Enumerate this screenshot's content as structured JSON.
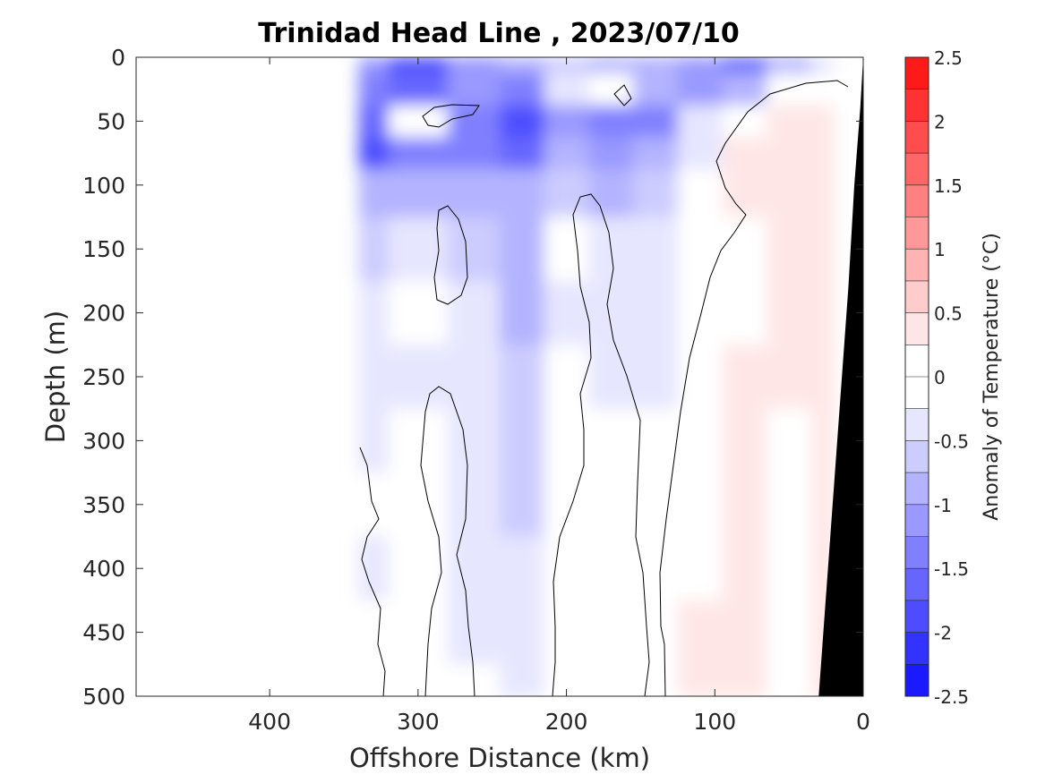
{
  "chart_data": {
    "type": "heatmap",
    "title": "Trinidad Head Line , 2023/07/10",
    "xlabel": "Offshore Distance (km)",
    "ylabel": "Depth (m)",
    "xlim": [
      490,
      0
    ],
    "ylim": [
      0,
      500
    ],
    "x_ticks": [
      400,
      300,
      200,
      100,
      0
    ],
    "y_ticks": [
      0,
      50,
      100,
      150,
      200,
      250,
      300,
      350,
      400,
      450,
      500
    ],
    "colorbar": {
      "label": "Anomaly of Temperature (°C)",
      "range": [
        -2.5,
        2.5
      ],
      "step": 0.25,
      "ticks": [
        -2.5,
        -2,
        -1.5,
        -1,
        -0.5,
        0,
        0.5,
        1,
        1.5,
        2,
        2.5
      ],
      "tick_labels": [
        "-2.5",
        "-2",
        "-1.5",
        "-1",
        "-0.5",
        "0",
        "0.5",
        "1",
        "1.5",
        "2",
        "2.5"
      ],
      "colors": [
        "#0000ff",
        "#1a1aff",
        "#3333ff",
        "#4d4dff",
        "#6666ff",
        "#8080ff",
        "#9999ff",
        "#b3b3ff",
        "#ccccff",
        "#e6e6ff",
        "#ffffff",
        "#ffffff",
        "#ffe6e6",
        "#ffcccc",
        "#ffb3b3",
        "#ff9999",
        "#ff8080",
        "#ff6666",
        "#ff4d4d",
        "#ff3333",
        "#ff1a1a",
        "#ff0000"
      ]
    },
    "bathymetry_color": "#000000",
    "data_extent_km": [
      340,
      0
    ],
    "anomaly_field": {
      "x": [
        340,
        300,
        260,
        230,
        200,
        170,
        140,
        110,
        80,
        50,
        20
      ],
      "depth": [
        0,
        25,
        50,
        75,
        100,
        150,
        200,
        250,
        300,
        350,
        400,
        450,
        500
      ],
      "values": [
        [
          -1.1,
          -2.0,
          -1.1,
          -0.9,
          -0.6,
          -0.9,
          -0.9,
          -1.2,
          -1.6,
          -0.8,
          -0.3
        ],
        [
          -1.3,
          -1.6,
          -1.2,
          -1.5,
          -0.4,
          0.0,
          -0.9,
          -1.1,
          -0.9,
          0.0,
          0.0
        ],
        [
          -1.6,
          -0.2,
          -1.4,
          -1.8,
          -1.1,
          -1.3,
          -1.4,
          -0.5,
          0.0,
          0.35,
          0.25
        ],
        [
          -1.8,
          -1.4,
          -1.5,
          -1.6,
          -1.0,
          -1.2,
          -1.0,
          -0.3,
          0.3,
          0.45,
          0.3
        ],
        [
          -1.0,
          -0.8,
          -0.8,
          -0.9,
          -0.6,
          -0.9,
          -0.7,
          -0.2,
          0.25,
          0.35,
          0.3
        ],
        [
          -0.6,
          -0.3,
          -0.6,
          -0.8,
          -0.1,
          -0.5,
          -0.5,
          -0.1,
          0.15,
          0.3,
          0.35
        ],
        [
          -0.5,
          0.0,
          -0.5,
          -0.8,
          -0.3,
          -0.4,
          -0.4,
          0.0,
          0.15,
          0.35,
          0.4
        ],
        [
          -0.5,
          -0.3,
          -0.4,
          -0.7,
          -0.1,
          -0.3,
          -0.3,
          0.0,
          0.3,
          0.3,
          0.4
        ],
        [
          -0.3,
          0.0,
          -0.4,
          -0.6,
          -0.1,
          -0.1,
          -0.2,
          0.0,
          0.3,
          0.15,
          0.4
        ],
        [
          -0.2,
          0.0,
          -0.3,
          -0.6,
          0.0,
          -0.1,
          -0.2,
          0.1,
          0.3,
          0.1,
          0.35
        ],
        [
          -0.3,
          0.0,
          -0.3,
          -0.5,
          0.0,
          -0.1,
          -0.2,
          0.2,
          0.3,
          0.1,
          0.35
        ],
        [
          -0.1,
          0.0,
          -0.3,
          -0.4,
          0.0,
          0.0,
          -0.1,
          0.3,
          0.3,
          0.1,
          0.35
        ],
        [
          -0.1,
          0.0,
          -0.2,
          -0.3,
          0.0,
          0.0,
          -0.1,
          0.3,
          0.3,
          0.1,
          0.35
        ]
      ]
    },
    "bathymetry": {
      "x": [
        0,
        2,
        6,
        10,
        15,
        20,
        25,
        30
      ],
      "depth": [
        0,
        40,
        100,
        180,
        260,
        340,
        420,
        500
      ]
    }
  }
}
